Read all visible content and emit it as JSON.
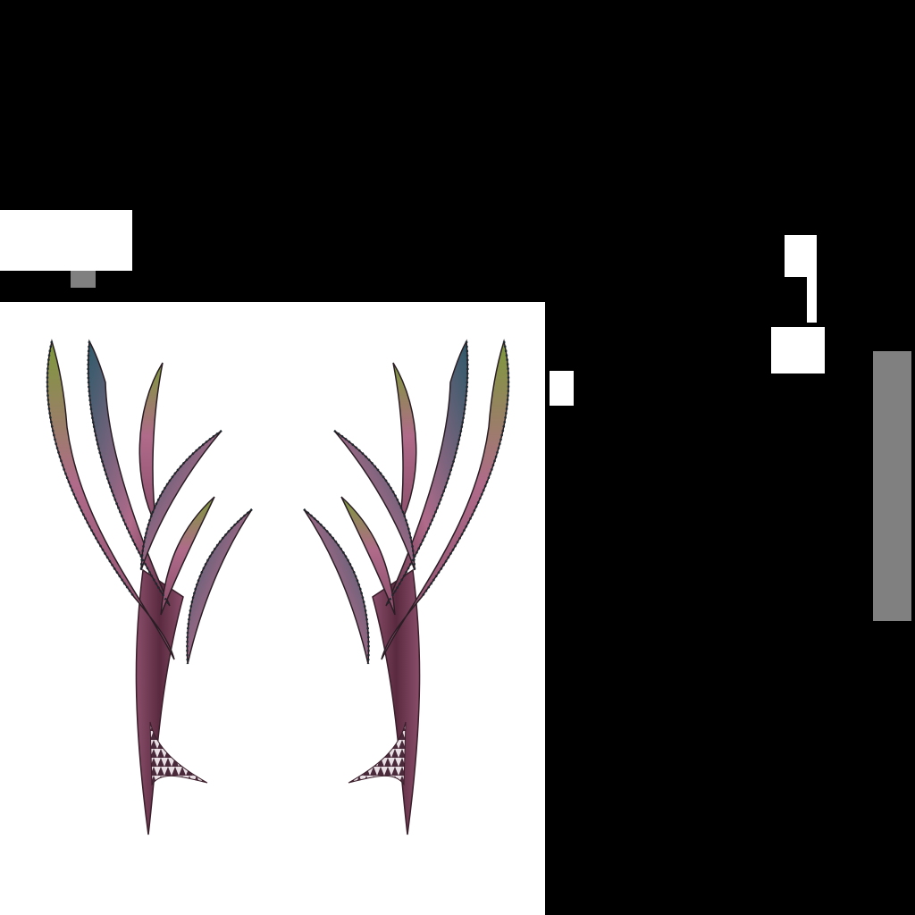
{
  "colors": {
    "background": "#000000",
    "panel": "#ffffff",
    "block_white": "#ffffff",
    "block_gray": "#808080",
    "leaf_green": "#7d9a3a",
    "leaf_pink": "#b06a8a",
    "leaf_mauve": "#8a4e6a",
    "leaf_teal": "#2e5a6a",
    "stem_dark": "#5a2a40"
  },
  "icons": {
    "left_plant": "ornamental-plant-illustration",
    "right_plant": "ornamental-plant-illustration-mirrored"
  }
}
